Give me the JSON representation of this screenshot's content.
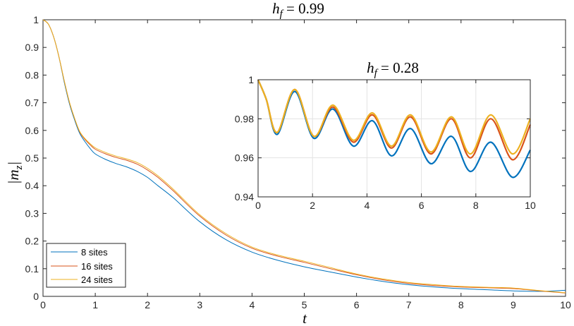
{
  "chart_data": [
    {
      "type": "line",
      "title_var": "h",
      "title_sub": "f",
      "title_value": " = 0.99",
      "xlabel": "t",
      "ylabel": "|m",
      "ylabel_sub": "z",
      "ylabel_end": "|",
      "xlim": [
        0,
        10
      ],
      "ylim": [
        0,
        1
      ],
      "xticks": [
        "0",
        "1",
        "2",
        "3",
        "4",
        "5",
        "6",
        "7",
        "8",
        "9",
        "10"
      ],
      "yticks": [
        "0",
        "0.1",
        "0.2",
        "0.3",
        "0.4",
        "0.5",
        "0.6",
        "0.7",
        "0.8",
        "0.9",
        "1"
      ],
      "grid": false,
      "legend_position": "bottom-left",
      "x": [
        0,
        0.1,
        0.2,
        0.3,
        0.4,
        0.5,
        0.6,
        0.7,
        0.8,
        0.9,
        1.0,
        1.2,
        1.4,
        1.6,
        1.8,
        2.0,
        2.2,
        2.5,
        3.0,
        3.5,
        4.0,
        4.5,
        5.0,
        5.5,
        6.0,
        6.5,
        7.0,
        7.5,
        8.0,
        8.5,
        9.0,
        9.5,
        10.0
      ],
      "series": [
        {
          "name": "8 sites",
          "color": "#0072BD",
          "values": [
            1.0,
            0.985,
            0.94,
            0.87,
            0.78,
            0.7,
            0.64,
            0.59,
            0.56,
            0.535,
            0.515,
            0.495,
            0.48,
            0.468,
            0.452,
            0.43,
            0.4,
            0.355,
            0.27,
            0.205,
            0.16,
            0.13,
            0.107,
            0.088,
            0.07,
            0.054,
            0.042,
            0.034,
            0.028,
            0.024,
            0.02,
            0.018,
            0.022
          ]
        },
        {
          "name": "16 sites",
          "color": "#D95319",
          "values": [
            1.0,
            0.985,
            0.94,
            0.87,
            0.785,
            0.705,
            0.645,
            0.595,
            0.568,
            0.548,
            0.532,
            0.515,
            0.502,
            0.492,
            0.478,
            0.457,
            0.43,
            0.38,
            0.29,
            0.222,
            0.174,
            0.145,
            0.123,
            0.1,
            0.078,
            0.06,
            0.047,
            0.039,
            0.034,
            0.031,
            0.028,
            0.02,
            0.012
          ]
        },
        {
          "name": "24 sites",
          "color": "#EDB120",
          "values": [
            1.0,
            0.985,
            0.94,
            0.87,
            0.785,
            0.706,
            0.646,
            0.597,
            0.571,
            0.552,
            0.537,
            0.52,
            0.507,
            0.497,
            0.484,
            0.463,
            0.436,
            0.386,
            0.295,
            0.227,
            0.178,
            0.149,
            0.127,
            0.104,
            0.081,
            0.063,
            0.05,
            0.042,
            0.036,
            0.033,
            0.03,
            0.021,
            0.013
          ]
        }
      ]
    },
    {
      "type": "line",
      "title_var": "h",
      "title_sub": "f",
      "title_value": " = 0.28",
      "xlim": [
        0,
        10
      ],
      "ylim": [
        0.94,
        1
      ],
      "xticks": [
        "0",
        "2",
        "4",
        "6",
        "8",
        "10"
      ],
      "yticks": [
        "0.94",
        "0.96",
        "0.98",
        "1"
      ],
      "grid": true,
      "x": [
        0,
        0.3,
        0.7,
        1.35,
        2.05,
        2.75,
        3.5,
        4.2,
        4.9,
        5.6,
        6.35,
        7.1,
        7.8,
        8.55,
        9.35,
        10.0
      ],
      "series": [
        {
          "name": "8 sites",
          "color": "#0072BD",
          "values": [
            1.0,
            0.99,
            0.972,
            0.994,
            0.97,
            0.985,
            0.966,
            0.979,
            0.961,
            0.975,
            0.957,
            0.971,
            0.953,
            0.968,
            0.95,
            0.964
          ]
        },
        {
          "name": "16 sites",
          "color": "#D95319",
          "values": [
            1.0,
            0.99,
            0.973,
            0.995,
            0.971,
            0.986,
            0.968,
            0.982,
            0.965,
            0.981,
            0.962,
            0.98,
            0.96,
            0.98,
            0.959,
            0.977
          ]
        },
        {
          "name": "24 sites",
          "color": "#EDB120",
          "values": [
            1.0,
            0.99,
            0.973,
            0.995,
            0.971,
            0.987,
            0.969,
            0.983,
            0.966,
            0.982,
            0.963,
            0.981,
            0.962,
            0.982,
            0.962,
            0.98
          ]
        }
      ]
    }
  ]
}
